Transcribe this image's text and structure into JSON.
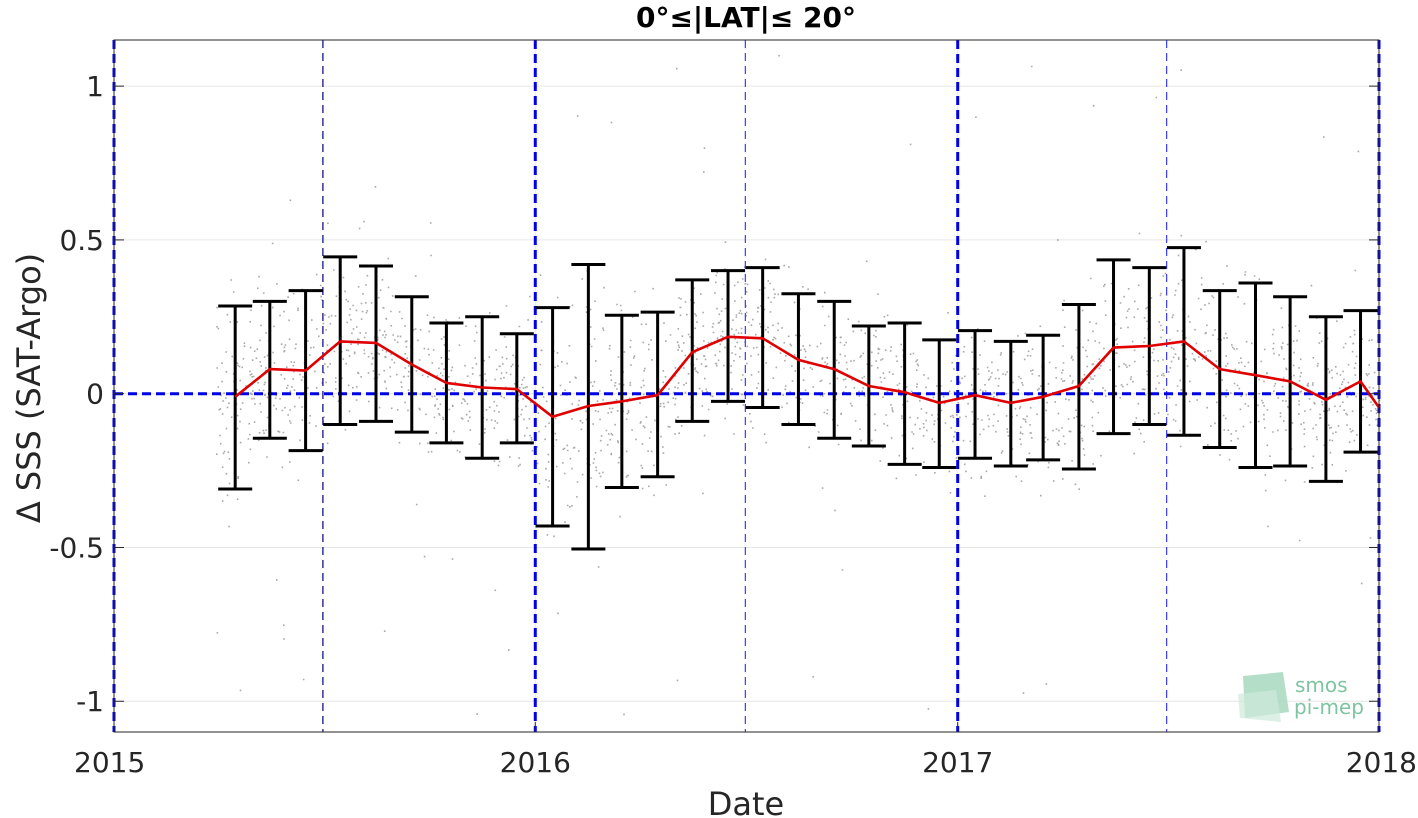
{
  "chart_data": {
    "type": "scatter",
    "title": "0°≤|LAT|≤ 20°",
    "xlabel": "Date",
    "ylabel": "Δ SSS (SAT-Argo)",
    "xlim": [
      "2015-01-01",
      "2018-01-01"
    ],
    "ylim": [
      -1.1,
      1.15
    ],
    "x_ticks": [
      {
        "label": "2015",
        "date": "2015-01-01"
      },
      {
        "label": "2016",
        "date": "2016-01-01"
      },
      {
        "label": "2017",
        "date": "2017-01-01"
      },
      {
        "label": "2018",
        "date": "2018-01-01"
      }
    ],
    "y_ticks": [
      {
        "label": "1",
        "value": 1
      },
      {
        "label": "0.5",
        "value": 0.5
      },
      {
        "label": "0",
        "value": 0
      },
      {
        "label": "-0.5",
        "value": -0.5
      },
      {
        "label": "-1",
        "value": -1
      }
    ],
    "grid": true,
    "series": [
      {
        "style": "red-line-with-errorbars",
        "color": "#e00000",
        "errorbar_color": "#000000",
        "points": [
          {
            "date": "2015-04-16",
            "mean": -0.01,
            "low": -0.31,
            "high": 0.285
          },
          {
            "date": "2015-05-16",
            "mean": 0.08,
            "low": -0.145,
            "high": 0.3
          },
          {
            "date": "2015-06-16",
            "mean": 0.075,
            "low": -0.185,
            "high": 0.335
          },
          {
            "date": "2015-07-16",
            "mean": 0.17,
            "low": -0.1,
            "high": 0.445
          },
          {
            "date": "2015-08-16",
            "mean": 0.165,
            "low": -0.09,
            "high": 0.415
          },
          {
            "date": "2015-09-16",
            "mean": 0.095,
            "low": -0.125,
            "high": 0.315
          },
          {
            "date": "2015-10-16",
            "mean": 0.035,
            "low": -0.16,
            "high": 0.23
          },
          {
            "date": "2015-11-16",
            "mean": 0.02,
            "low": -0.21,
            "high": 0.25
          },
          {
            "date": "2015-12-16",
            "mean": 0.015,
            "low": -0.16,
            "high": 0.195
          },
          {
            "date": "2016-01-16",
            "mean": -0.075,
            "low": -0.43,
            "high": 0.28
          },
          {
            "date": "2016-02-16",
            "mean": -0.04,
            "low": -0.505,
            "high": 0.42
          },
          {
            "date": "2016-03-16",
            "mean": -0.025,
            "low": -0.305,
            "high": 0.255
          },
          {
            "date": "2016-04-16",
            "mean": -0.005,
            "low": -0.27,
            "high": 0.265
          },
          {
            "date": "2016-05-16",
            "mean": 0.135,
            "low": -0.09,
            "high": 0.37
          },
          {
            "date": "2016-06-16",
            "mean": 0.185,
            "low": -0.025,
            "high": 0.4
          },
          {
            "date": "2016-07-16",
            "mean": 0.18,
            "low": -0.045,
            "high": 0.41
          },
          {
            "date": "2016-08-16",
            "mean": 0.11,
            "low": -0.1,
            "high": 0.325
          },
          {
            "date": "2016-09-16",
            "mean": 0.08,
            "low": -0.145,
            "high": 0.3
          },
          {
            "date": "2016-10-16",
            "mean": 0.025,
            "low": -0.17,
            "high": 0.22
          },
          {
            "date": "2016-11-16",
            "mean": 0.005,
            "low": -0.23,
            "high": 0.23
          },
          {
            "date": "2016-12-16",
            "mean": -0.03,
            "low": -0.24,
            "high": 0.175
          },
          {
            "date": "2017-01-16",
            "mean": -0.005,
            "low": -0.21,
            "high": 0.205
          },
          {
            "date": "2017-02-16",
            "mean": -0.03,
            "low": -0.235,
            "high": 0.17
          },
          {
            "date": "2017-03-16",
            "mean": -0.01,
            "low": -0.215,
            "high": 0.19
          },
          {
            "date": "2017-04-16",
            "mean": 0.025,
            "low": -0.245,
            "high": 0.29
          },
          {
            "date": "2017-05-16",
            "mean": 0.15,
            "low": -0.13,
            "high": 0.435
          },
          {
            "date": "2017-06-16",
            "mean": 0.155,
            "low": -0.1,
            "high": 0.41
          },
          {
            "date": "2017-07-16",
            "mean": 0.17,
            "low": -0.135,
            "high": 0.475
          },
          {
            "date": "2017-08-16",
            "mean": 0.08,
            "low": -0.175,
            "high": 0.335
          },
          {
            "date": "2017-09-16",
            "mean": 0.06,
            "low": -0.24,
            "high": 0.36
          },
          {
            "date": "2017-10-16",
            "mean": 0.04,
            "low": -0.235,
            "high": 0.315
          },
          {
            "date": "2017-11-16",
            "mean": -0.02,
            "low": -0.285,
            "high": 0.25
          },
          {
            "date": "2017-12-16",
            "mean": 0.04,
            "low": -0.19,
            "high": 0.27
          },
          {
            "date": "2018-01-01",
            "mean": -0.045
          }
        ]
      },
      {
        "style": "gray-scatter",
        "color": "#8c8c8c",
        "x_range": [
          "2015-03-30",
          "2018-01-01"
        ]
      }
    ],
    "reference_lines": [
      {
        "orientation": "vertical",
        "date": "2015-01-01",
        "style": "thick-dashed",
        "color": "#0000e6"
      },
      {
        "orientation": "vertical",
        "date": "2015-07-01",
        "style": "thin-dashed",
        "color": "#000080"
      },
      {
        "orientation": "vertical",
        "date": "2016-01-01",
        "style": "thick-dashed",
        "color": "#0000e6"
      },
      {
        "orientation": "vertical",
        "date": "2016-07-01",
        "style": "thin-dashed",
        "color": "#3c3cff"
      },
      {
        "orientation": "vertical",
        "date": "2017-01-01",
        "style": "thick-dashed",
        "color": "#0000e6"
      },
      {
        "orientation": "vertical",
        "date": "2017-07-01",
        "style": "thin-dashed",
        "color": "#3c3cff"
      },
      {
        "orientation": "vertical",
        "date": "2018-01-01",
        "style": "thick-dashed",
        "color": "#0000e6"
      },
      {
        "orientation": "horizontal",
        "value": 0,
        "style": "thick-dashed",
        "color": "#0000e6"
      }
    ]
  },
  "logo": {
    "line1": "smos",
    "line2": "pi-mep",
    "color": "#7fc4a0"
  }
}
